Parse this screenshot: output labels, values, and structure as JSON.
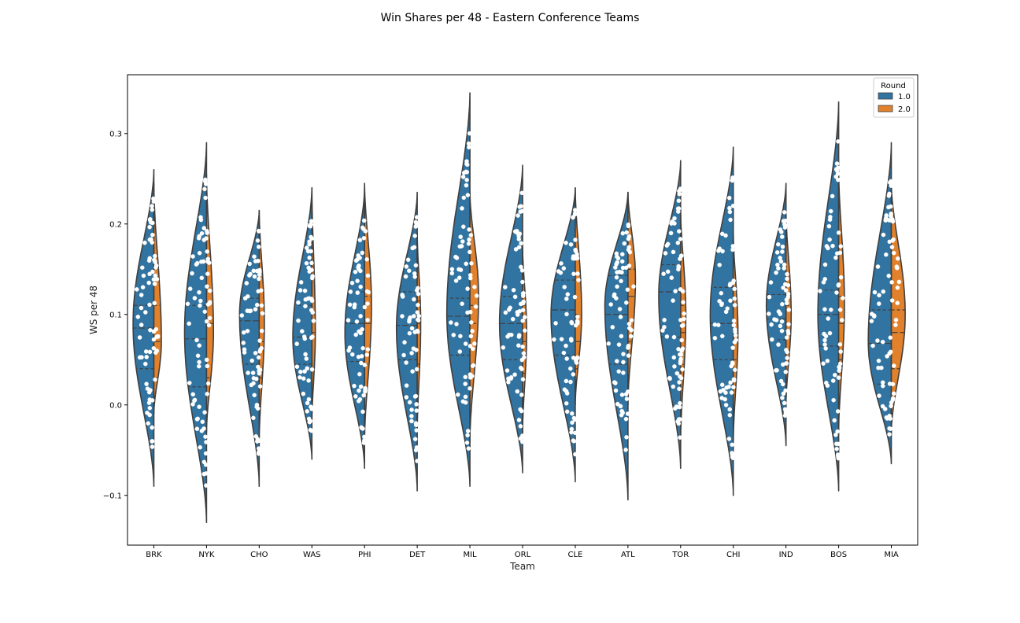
{
  "chart_data": {
    "type": "violin",
    "title": "Win Shares per 48 - Eastern Conference Teams",
    "xlabel": "Team",
    "ylabel": "WS per 48",
    "categories": [
      "BRK",
      "NYK",
      "CHO",
      "WAS",
      "PHI",
      "DET",
      "MIL",
      "ORL",
      "CLE",
      "ATL",
      "TOR",
      "CHI",
      "IND",
      "BOS",
      "MIA"
    ],
    "ylim": [
      -0.155,
      0.365
    ],
    "yticks": [
      -0.1,
      0.0,
      0.1,
      0.2,
      0.3
    ],
    "ytick_labels": [
      "−0.1",
      "0.0",
      "0.1",
      "0.2",
      "0.3"
    ],
    "grid": false,
    "split": true,
    "inner": "quartile",
    "overlay": "swarm",
    "legend": {
      "title": "Round",
      "placement": "top-right",
      "entries": [
        {
          "label": "1.0",
          "color": "#3274a1"
        },
        {
          "label": "2.0",
          "color": "#e1812c"
        }
      ]
    },
    "series": [
      {
        "name": "1.0",
        "color": "#3274a1",
        "min": [
          -0.09,
          -0.13,
          -0.09,
          -0.06,
          -0.07,
          -0.095,
          -0.09,
          -0.075,
          -0.085,
          -0.105,
          -0.07,
          -0.1,
          -0.045,
          -0.095,
          -0.065
        ],
        "max": [
          0.26,
          0.29,
          0.215,
          0.24,
          0.24,
          0.235,
          0.345,
          0.265,
          0.24,
          0.235,
          0.27,
          0.285,
          0.245,
          0.335,
          0.29
        ],
        "mode": [
          0.09,
          0.08,
          0.1,
          0.075,
          0.08,
          0.085,
          0.1,
          0.09,
          0.1,
          0.11,
          0.12,
          0.1,
          0.11,
          0.1,
          0.07
        ],
        "width": [
          0.36,
          0.38,
          0.34,
          0.33,
          0.34,
          0.36,
          0.4,
          0.4,
          0.42,
          0.4,
          0.38,
          0.4,
          0.34,
          0.36,
          0.4
        ],
        "q1": [
          0.04,
          0.02,
          0.045,
          0.045,
          0.048,
          0.05,
          0.055,
          0.05,
          0.055,
          0.045,
          0.075,
          0.05,
          0.072,
          0.065,
          0.023
        ],
        "median": [
          0.085,
          0.073,
          0.093,
          0.075,
          0.09,
          0.088,
          0.098,
          0.09,
          0.105,
          0.1,
          0.125,
          0.09,
          0.095,
          0.1,
          0.068
        ],
        "q3": [
          0.11,
          0.11,
          0.118,
          0.11,
          0.125,
          0.125,
          0.118,
          0.12,
          0.138,
          0.143,
          0.155,
          0.13,
          0.122,
          0.127,
          0.105
        ]
      },
      {
        "name": "2.0",
        "color": "#e1812c",
        "min": [
          -0.01,
          -0.03,
          -0.04,
          -0.02,
          -0.04,
          -0.03,
          -0.04,
          -0.03,
          0.0,
          0.0,
          -0.04,
          -0.04,
          0.0,
          -0.03,
          -0.03
        ],
        "max": [
          0.245,
          0.255,
          0.215,
          0.24,
          0.245,
          0.19,
          0.235,
          0.175,
          0.24,
          0.235,
          0.215,
          0.19,
          0.215,
          0.26,
          0.245
        ],
        "mode": [
          0.07,
          0.08,
          0.09,
          0.08,
          0.11,
          0.09,
          0.12,
          0.08,
          0.1,
          0.14,
          0.1,
          0.08,
          0.1,
          0.11,
          0.1
        ],
        "width": [
          0.13,
          0.12,
          0.09,
          0.06,
          0.12,
          0.06,
          0.15,
          0.07,
          0.11,
          0.13,
          0.09,
          0.08,
          0.09,
          0.1,
          0.24
        ],
        "q1": [
          0.03,
          0.03,
          0.03,
          0.04,
          0.045,
          0.045,
          0.045,
          0.035,
          0.04,
          0.07,
          0.045,
          0.05,
          0.06,
          0.05,
          0.04
        ],
        "median": [
          0.07,
          0.09,
          0.07,
          0.08,
          0.09,
          0.09,
          0.09,
          0.07,
          0.07,
          0.12,
          0.08,
          0.08,
          0.09,
          0.09,
          0.08
        ],
        "q3": [
          0.11,
          0.13,
          0.1,
          0.1,
          0.12,
          0.115,
          0.11,
          0.11,
          0.1,
          0.15,
          0.11,
          0.11,
          0.11,
          0.12,
          0.105
        ]
      }
    ]
  }
}
